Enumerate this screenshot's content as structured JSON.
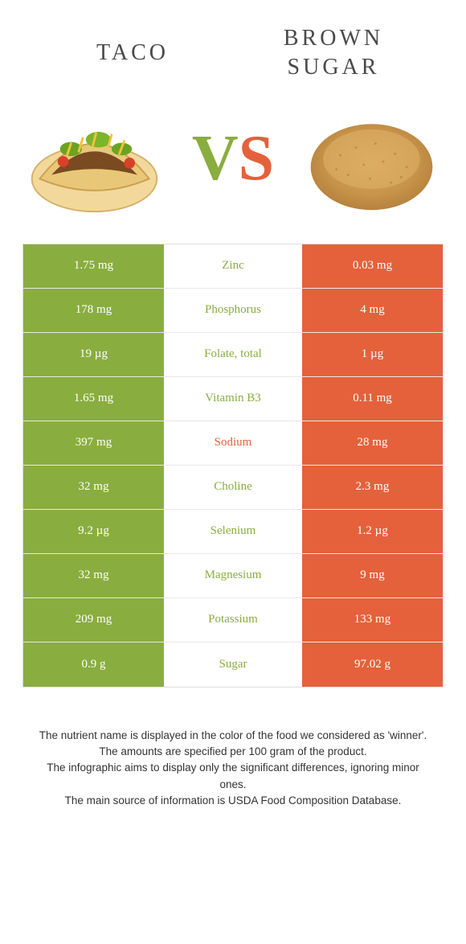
{
  "header": {
    "left_title": "TACO",
    "right_title_line1": "BROWN",
    "right_title_line2": "SUGAR",
    "vs_v": "V",
    "vs_s": "S"
  },
  "colors": {
    "green": "#8aad3f",
    "orange": "#e4613c"
  },
  "rows": [
    {
      "left": "1.75 mg",
      "mid": "Zinc",
      "right": "0.03 mg",
      "winner": "left"
    },
    {
      "left": "178 mg",
      "mid": "Phosphorus",
      "right": "4 mg",
      "winner": "left"
    },
    {
      "left": "19 µg",
      "mid": "Folate, total",
      "right": "1 µg",
      "winner": "left"
    },
    {
      "left": "1.65 mg",
      "mid": "Vitamin B3",
      "right": "0.11 mg",
      "winner": "left"
    },
    {
      "left": "397 mg",
      "mid": "Sodium",
      "right": "28 mg",
      "winner": "right"
    },
    {
      "left": "32 mg",
      "mid": "Choline",
      "right": "2.3 mg",
      "winner": "left"
    },
    {
      "left": "9.2 µg",
      "mid": "Selenium",
      "right": "1.2 µg",
      "winner": "left"
    },
    {
      "left": "32 mg",
      "mid": "Magnesium",
      "right": "9 mg",
      "winner": "left"
    },
    {
      "left": "209 mg",
      "mid": "Potassium",
      "right": "133 mg",
      "winner": "left"
    },
    {
      "left": "0.9 g",
      "mid": "Sugar",
      "right": "97.02 g",
      "winner": "left"
    }
  ],
  "footer": {
    "line1": "The nutrient name is displayed in the color of the food we considered as 'winner'.",
    "line2": "The amounts are specified per 100 gram of the product.",
    "line3": "The infographic aims to display only the significant differences, ignoring minor ones.",
    "line4": "The main source of information is USDA Food Composition Database."
  }
}
